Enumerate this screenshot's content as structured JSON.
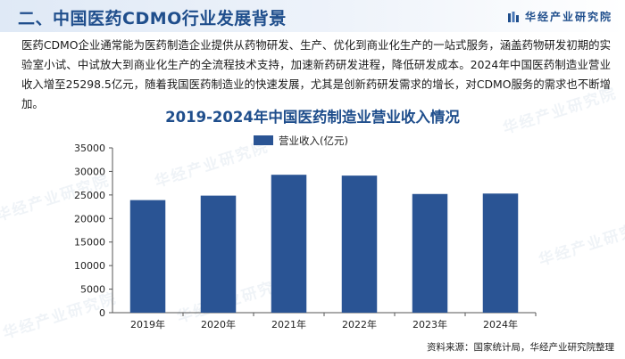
{
  "header": {
    "title": "二、中国医药CDMO行业发展背景",
    "brand": "华经产业研究院"
  },
  "paragraph": "医药CDMO企业通常能为医药制造企业提供从药物研发、生产、优化到商业化生产的一站式服务，涵盖药物研发初期的实验室小试、中试放大到商业化生产的全流程技术支持，加速新药研发进程，降低研发成本。2024年中国医药制造业营业收入增至25298.5亿元，随着我国医药制造业的快速发展，尤其是创新药研发需求的增长，对CDMO服务的需求也不断增加。",
  "watermark": "华经产业研究院",
  "source": "资料来源：国家统计局，华经产业研究院整理",
  "colors": {
    "accent": "#1f4e8c",
    "bar": "#2a5494"
  },
  "chart_data": {
    "type": "bar",
    "title": "2019-2024年中国医药制造业营业收入情况",
    "categories": [
      "2019年",
      "2020年",
      "2021年",
      "2022年",
      "2023年",
      "2024年"
    ],
    "series": [
      {
        "name": "营业收入(亿元)",
        "values": [
          23909,
          24857,
          29288,
          29111,
          25205,
          25298.5
        ]
      }
    ],
    "ylim": [
      0,
      35000
    ],
    "yticks": [
      0,
      5000,
      10000,
      15000,
      20000,
      25000,
      30000,
      35000
    ],
    "legend": "top-left",
    "grid": false
  }
}
